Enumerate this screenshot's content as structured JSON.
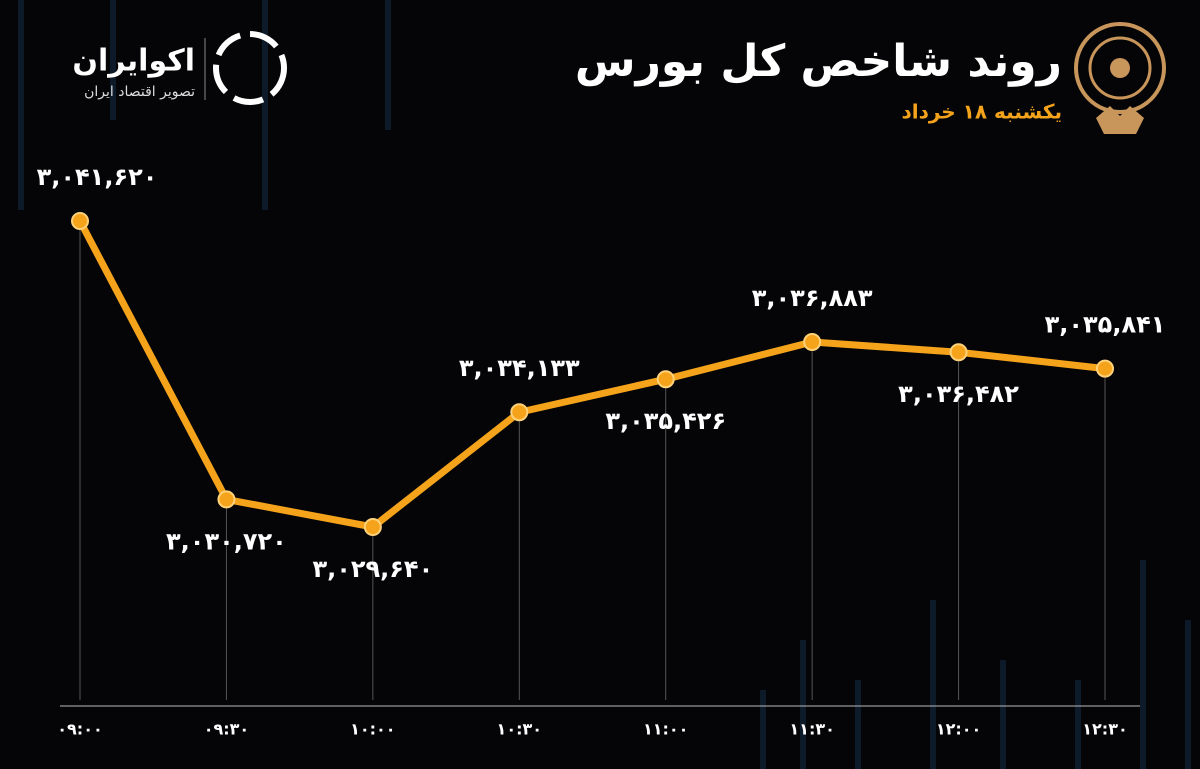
{
  "brand": {
    "name": "اکوایران",
    "tagline": "تصویر اقتصاد ایران"
  },
  "chart_data": {
    "type": "line",
    "title": "روند شاخص کل بورس",
    "subtitle": "یکشنبه ۱۸ خرداد",
    "categories": [
      "۰۹:۰۰",
      "۰۹:۳۰",
      "۱۰:۰۰",
      "۱۰:۳۰",
      "۱۱:۰۰",
      "۱۱:۳۰",
      "۱۲:۰۰",
      "۱۲:۳۰"
    ],
    "values": [
      3041620,
      3030720,
      3029640,
      3034133,
      3035426,
      3036883,
      3036482,
      3035841
    ],
    "value_labels": [
      "۳,۰۴۱,۶۲۰",
      "۳,۰۳۰,۷۲۰",
      "۳,۰۲۹,۶۴۰",
      "۳,۰۳۴,۱۳۳",
      "۳,۰۳۵,۴۲۶",
      "۳,۰۳۶,۸۸۳",
      "۳,۰۳۶,۴۸۲",
      "۳,۰۳۵,۸۴۱"
    ],
    "color": "#f6a31c"
  }
}
